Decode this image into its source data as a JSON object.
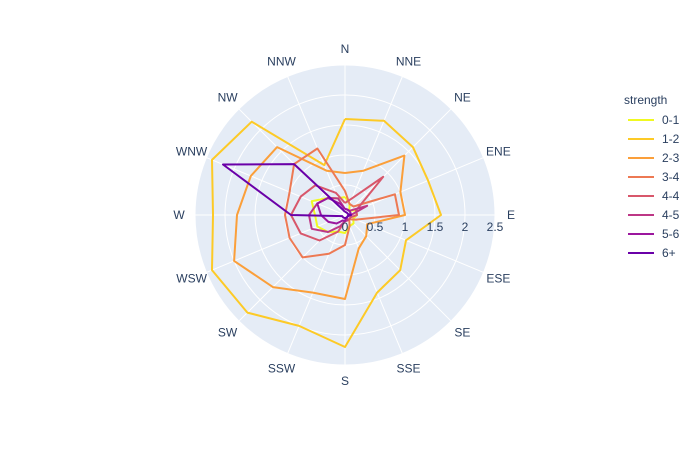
{
  "chart_data": {
    "type": "line",
    "subtype": "polar",
    "directions": [
      "N",
      "NNE",
      "NE",
      "ENE",
      "E",
      "ESE",
      "SE",
      "SSE",
      "S",
      "SSW",
      "SW",
      "WSW",
      "W",
      "WNW",
      "NW",
      "NNW"
    ],
    "radial_ticks": [
      "0",
      "0.5",
      "1",
      "1.5",
      "2",
      "2.5"
    ],
    "radial_range": [
      0,
      2.5
    ],
    "angular_direction": "clockwise",
    "rotation": "north-up",
    "grid": true,
    "legend": {
      "title": "strength",
      "placement": "top-right"
    },
    "series": [
      {
        "name": "0-1",
        "color": "#f0f921",
        "values": [
          0.3,
          0.2,
          0.1,
          0.2,
          0.2,
          0.15,
          0.2,
          0.2,
          0.3,
          0.3,
          0.4,
          0.5,
          0.5,
          0.6,
          0.4,
          0.3
        ]
      },
      {
        "name": "1-2",
        "color": "#fdca26",
        "values": [
          1.6,
          1.7,
          1.6,
          1.5,
          1.6,
          1.1,
          1.3,
          1.4,
          2.2,
          2.0,
          2.3,
          2.4,
          2.2,
          2.4,
          2.2,
          0.9
        ]
      },
      {
        "name": "2-3",
        "color": "#fb9f3a",
        "values": [
          0.7,
          0.8,
          1.4,
          1.0,
          1.0,
          0.4,
          0.5,
          0.6,
          1.4,
          1.4,
          1.7,
          2.0,
          1.8,
          1.7,
          1.6,
          0.8
        ]
      },
      {
        "name": "3-4",
        "color": "#ed7953",
        "values": [
          0.4,
          0.2,
          0.2,
          0.9,
          0.9,
          0.2,
          0.1,
          0.2,
          0.5,
          0.7,
          1.0,
          1.0,
          1.0,
          1.0,
          1.2,
          1.2
        ]
      },
      {
        "name": "4-4",
        "color": "#d8576b",
        "values": [
          0.2,
          0.3,
          0.9,
          0.2,
          0.2,
          0.1,
          0.1,
          0.1,
          0.1,
          0.3,
          0.6,
          0.8,
          0.9,
          0.8,
          0.7,
          0.4
        ]
      },
      {
        "name": "4-5",
        "color": "#bd3786",
        "values": [
          0.1,
          0.1,
          0.1,
          0.4,
          0.1,
          0.05,
          0.05,
          0.1,
          0.1,
          0.2,
          0.4,
          0.6,
          0.6,
          0.5,
          0.4,
          0.3
        ]
      },
      {
        "name": "5-6",
        "color": "#9c179e",
        "values": [
          0.1,
          0.1,
          0.1,
          0.1,
          0.1,
          0.05,
          0.05,
          0.05,
          0.1,
          0.1,
          0.2,
          0.3,
          0.4,
          0.5,
          0.4,
          0.2
        ]
      },
      {
        "name": "6+",
        "color": "#6a00a8",
        "values": [
          0.05,
          0.05,
          0.05,
          0.05,
          0.1,
          0.05,
          0.05,
          0.05,
          0.05,
          0.05,
          0.05,
          0.05,
          0.9,
          2.2,
          1.2,
          0.1
        ]
      }
    ]
  }
}
